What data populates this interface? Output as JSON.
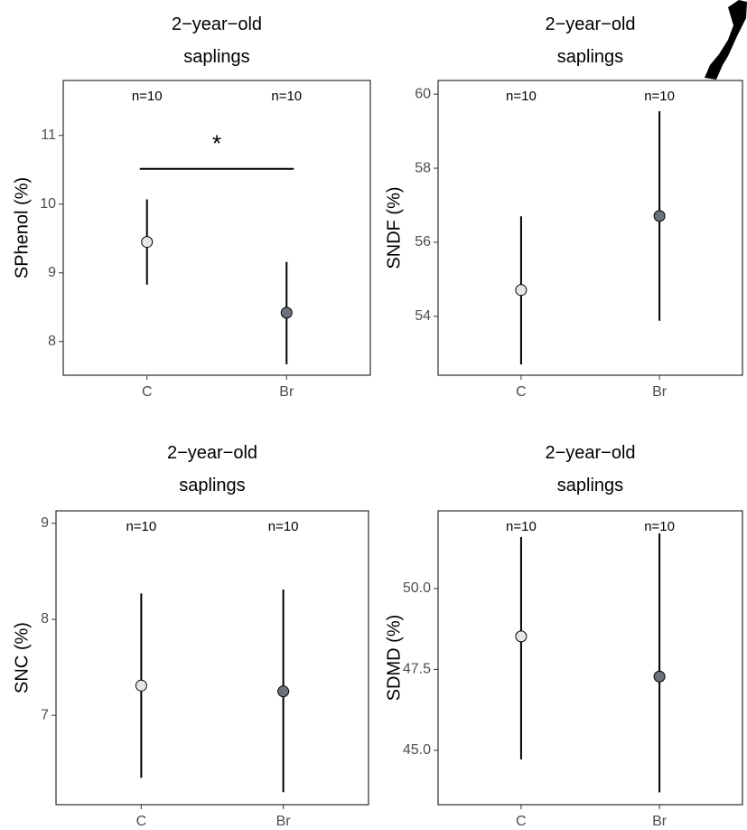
{
  "chart_data": [
    {
      "type": "errorbar",
      "title": "2−year−old saplings",
      "ylabel": "SPhenol (%)",
      "categories": [
        "C",
        "Br"
      ],
      "values": [
        9.45,
        8.42
      ],
      "lower": [
        8.83,
        7.67
      ],
      "upper": [
        10.07,
        9.16
      ],
      "colors": [
        "#e6e6e6",
        "#6b727c"
      ],
      "annotations": [
        "n=10",
        "n=10"
      ],
      "significance": "*",
      "ylim": [
        7.51,
        11.8
      ],
      "yticks": [
        8,
        9,
        10,
        11
      ]
    },
    {
      "type": "errorbar",
      "title": "2−year−old saplings",
      "ylabel": "SNDF (%)",
      "categories": [
        "C",
        "Br"
      ],
      "values": [
        54.71,
        56.71
      ],
      "lower": [
        52.7,
        53.88
      ],
      "upper": [
        56.7,
        59.54
      ],
      "colors": [
        "#e6e6e6",
        "#6b727c"
      ],
      "annotations": [
        "n=10",
        "n=10"
      ],
      "ylim": [
        52.41,
        60.37
      ],
      "yticks": [
        54,
        56,
        58,
        60
      ]
    },
    {
      "type": "errorbar",
      "title": "2−year−old saplings",
      "ylabel": "SNC (%)",
      "categories": [
        "C",
        "Br"
      ],
      "values": [
        7.31,
        7.25
      ],
      "lower": [
        6.35,
        6.2
      ],
      "upper": [
        8.27,
        8.31
      ],
      "colors": [
        "#e6e6e6",
        "#6b727c"
      ],
      "annotations": [
        "n=10",
        "n=10"
      ],
      "ylim": [
        6.07,
        9.13
      ],
      "yticks": [
        7,
        8,
        9
      ]
    },
    {
      "type": "errorbar",
      "title": "2−year−old saplings",
      "ylabel": "SDMD (%)",
      "categories": [
        "C",
        "Br"
      ],
      "values": [
        48.52,
        47.28
      ],
      "lower": [
        44.72,
        43.7
      ],
      "upper": [
        51.59,
        51.7
      ],
      "colors": [
        "#e6e6e6",
        "#6b727c"
      ],
      "annotations": [
        "n=10",
        "n=10"
      ],
      "ylim": [
        43.32,
        52.4
      ],
      "yticks": [
        {
          "value": 45,
          "label": "45.0"
        },
        47.5,
        {
          "value": 50,
          "label": "50.0"
        }
      ]
    }
  ]
}
